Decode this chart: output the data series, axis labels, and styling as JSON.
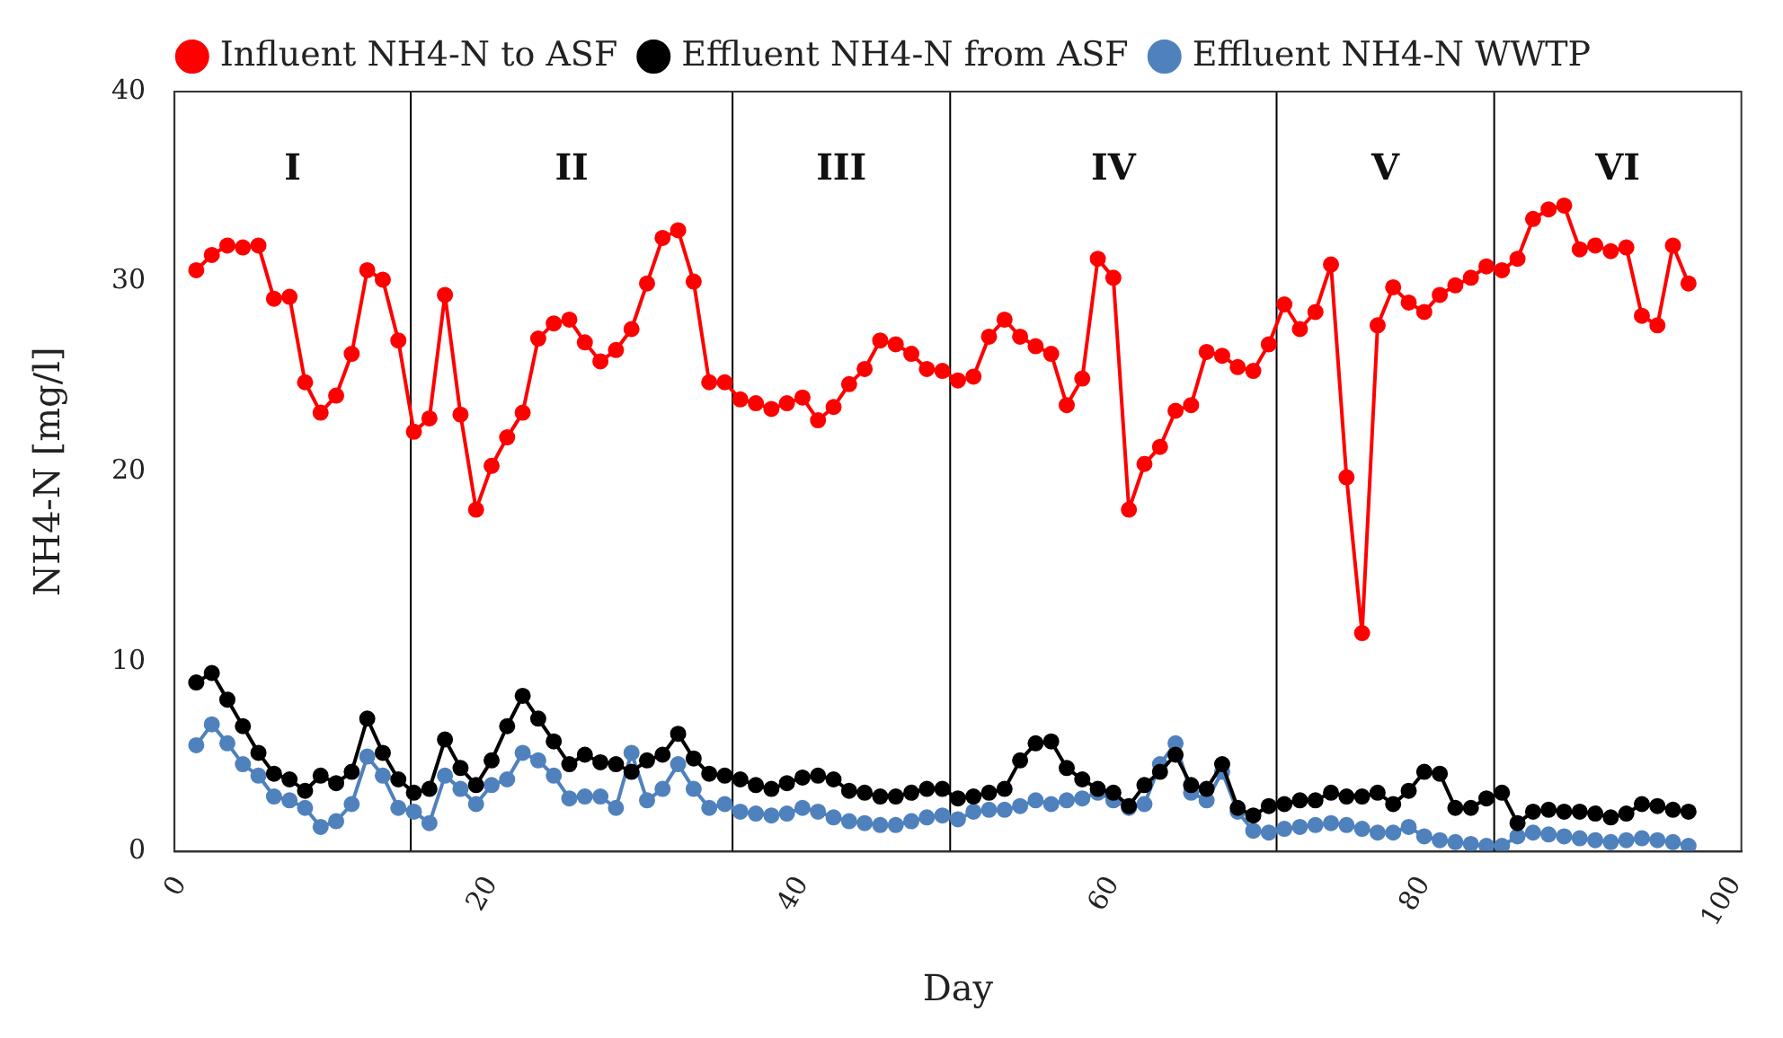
{
  "chart_data": {
    "type": "line",
    "xlabel": "Day",
    "ylabel": "NH4-N [mg/l]",
    "x": [
      1,
      2,
      3,
      4,
      5,
      6,
      7,
      8,
      9,
      10,
      11,
      12,
      13,
      14,
      15,
      16,
      17,
      18,
      19,
      20,
      21,
      22,
      23,
      24,
      25,
      26,
      27,
      28,
      29,
      30,
      31,
      32,
      33,
      34,
      35,
      36,
      37,
      38,
      39,
      40,
      41,
      42,
      43,
      44,
      45,
      46,
      47,
      48,
      49,
      50,
      51,
      52,
      53,
      54,
      55,
      56,
      57,
      58,
      59,
      60,
      61,
      62,
      63,
      64,
      65,
      66,
      67,
      68,
      69,
      70,
      71,
      72,
      73,
      74,
      75,
      76,
      77,
      78,
      79,
      80,
      81,
      82,
      83,
      84,
      85,
      86,
      87,
      88,
      89,
      90,
      91,
      92,
      93,
      94,
      95,
      96,
      97
    ],
    "series": [
      {
        "name": "Influent NH4-N to ASF",
        "color": "#ff0000",
        "values": [
          30.6,
          31.4,
          31.9,
          31.8,
          31.9,
          29.1,
          29.2,
          24.7,
          23.1,
          24.0,
          26.2,
          30.6,
          30.1,
          26.9,
          22.1,
          22.8,
          29.3,
          23.0,
          18.0,
          20.3,
          21.8,
          23.1,
          27.0,
          27.8,
          28.0,
          26.8,
          25.8,
          26.4,
          27.5,
          29.9,
          32.3,
          32.7,
          30.0,
          24.7,
          24.7,
          23.8,
          23.6,
          23.3,
          23.6,
          23.9,
          22.7,
          23.4,
          24.6,
          25.4,
          26.9,
          26.7,
          26.2,
          25.4,
          25.3,
          24.8,
          25.0,
          27.1,
          28.0,
          27.1,
          26.6,
          26.2,
          23.5,
          24.9,
          31.2,
          30.2,
          18.0,
          20.4,
          21.3,
          23.2,
          23.5,
          26.3,
          26.1,
          25.5,
          25.3,
          26.7,
          28.8,
          27.5,
          28.4,
          30.9,
          19.7,
          11.5,
          27.7,
          29.7,
          28.9,
          28.4,
          29.3,
          29.8,
          30.2,
          30.8,
          30.6,
          31.2,
          33.3,
          33.8,
          34.0,
          31.7,
          31.9,
          31.6,
          31.8,
          28.2,
          27.7,
          31.9,
          29.9
        ]
      },
      {
        "name": "Effluent NH4-N from ASF",
        "color": "#000000",
        "values": [
          8.9,
          9.4,
          8.0,
          6.6,
          5.2,
          4.1,
          3.8,
          3.2,
          4.0,
          3.6,
          4.2,
          7.0,
          5.2,
          3.8,
          3.1,
          3.3,
          5.9,
          4.4,
          3.5,
          4.8,
          6.6,
          8.2,
          7.0,
          5.8,
          4.6,
          5.1,
          4.7,
          4.6,
          4.2,
          4.8,
          5.1,
          6.2,
          4.9,
          4.1,
          4.0,
          3.8,
          3.5,
          3.3,
          3.6,
          3.9,
          4.0,
          3.8,
          3.2,
          3.1,
          2.9,
          2.9,
          3.1,
          3.3,
          3.3,
          2.8,
          2.9,
          3.1,
          3.3,
          4.8,
          5.7,
          5.8,
          4.4,
          3.8,
          3.3,
          3.1,
          2.4,
          3.5,
          4.2,
          5.1,
          3.5,
          3.3,
          4.6,
          2.3,
          1.9,
          2.4,
          2.5,
          2.7,
          2.7,
          3.1,
          2.9,
          2.9,
          3.1,
          2.5,
          3.2,
          4.2,
          4.1,
          2.3,
          2.3,
          2.8,
          3.1,
          1.5,
          2.1,
          2.2,
          2.1,
          2.1,
          2.0,
          1.8,
          2.0,
          2.5,
          2.4,
          2.2,
          2.1
        ]
      },
      {
        "name": "Effluent NH4-N WWTP",
        "color": "#4f81bd",
        "values": [
          5.6,
          6.7,
          5.7,
          4.6,
          4.0,
          2.9,
          2.7,
          2.3,
          1.3,
          1.6,
          2.5,
          5.0,
          4.0,
          2.3,
          2.1,
          1.5,
          4.0,
          3.3,
          2.5,
          3.5,
          3.8,
          5.2,
          4.8,
          4.0,
          2.8,
          2.9,
          2.9,
          2.3,
          5.2,
          2.7,
          3.3,
          4.6,
          3.3,
          2.3,
          2.5,
          2.1,
          2.0,
          1.9,
          2.0,
          2.3,
          2.1,
          1.8,
          1.6,
          1.5,
          1.4,
          1.4,
          1.6,
          1.8,
          1.9,
          1.7,
          2.1,
          2.2,
          2.2,
          2.4,
          2.7,
          2.5,
          2.7,
          2.8,
          3.1,
          2.7,
          2.3,
          2.5,
          4.6,
          5.7,
          3.1,
          2.7,
          4.2,
          2.1,
          1.1,
          1.0,
          1.2,
          1.3,
          1.4,
          1.5,
          1.4,
          1.2,
          1.0,
          1.0,
          1.3,
          0.8,
          0.6,
          0.5,
          0.4,
          0.3,
          0.3,
          0.8,
          1.0,
          0.9,
          0.8,
          0.7,
          0.6,
          0.5,
          0.6,
          0.7,
          0.6,
          0.5,
          0.3
        ]
      }
    ],
    "xlim": [
      -0.4,
      100.4
    ],
    "xticks": [
      0,
      20,
      40,
      60,
      80,
      100
    ],
    "ylim": [
      0,
      40
    ],
    "yticks": [
      0,
      10,
      20,
      30,
      40
    ],
    "ref_lines": [
      {
        "axis": "x",
        "value": 14.8,
        "color": "#000000"
      },
      {
        "axis": "x",
        "value": 35.5,
        "color": "#000000"
      },
      {
        "axis": "x",
        "value": 49.5,
        "color": "#000000"
      },
      {
        "axis": "x",
        "value": 70.5,
        "color": "#000000"
      },
      {
        "axis": "x",
        "value": 84.5,
        "color": "#000000"
      }
    ],
    "annotations": [
      "I",
      "II",
      "III",
      "IV",
      "V",
      "VI"
    ],
    "legend": "top",
    "grid": false,
    "marker": "circle",
    "line_style": "solid"
  }
}
